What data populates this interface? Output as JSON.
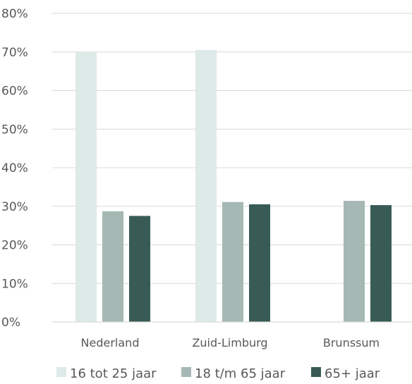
{
  "chart_data": {
    "type": "bar",
    "categories": [
      "Nederland",
      "Zuid-Limburg",
      "Brunssum"
    ],
    "series": [
      {
        "name": "16 tot 25 jaar",
        "values": [
          70,
          70.5,
          null
        ],
        "color": "#ddeae8"
      },
      {
        "name": "18 t/m 65 jaar",
        "values": [
          28.7,
          31.1,
          31.4
        ],
        "color": "#a5b8b4"
      },
      {
        "name": "65+ jaar",
        "values": [
          27.5,
          30.5,
          30.3
        ],
        "color": "#385c55"
      }
    ],
    "ylim": [
      0,
      80
    ],
    "yticks": [
      0,
      10,
      20,
      30,
      40,
      50,
      60,
      70,
      80
    ],
    "ytick_labels": [
      "0%",
      "10%",
      "20%",
      "30%",
      "40%",
      "50%",
      "60%",
      "70%",
      "80%"
    ],
    "grid": true,
    "gridline_color": "#d9d9d9",
    "legend_position": "bottom",
    "title": "",
    "xlabel": "",
    "ylabel": ""
  }
}
